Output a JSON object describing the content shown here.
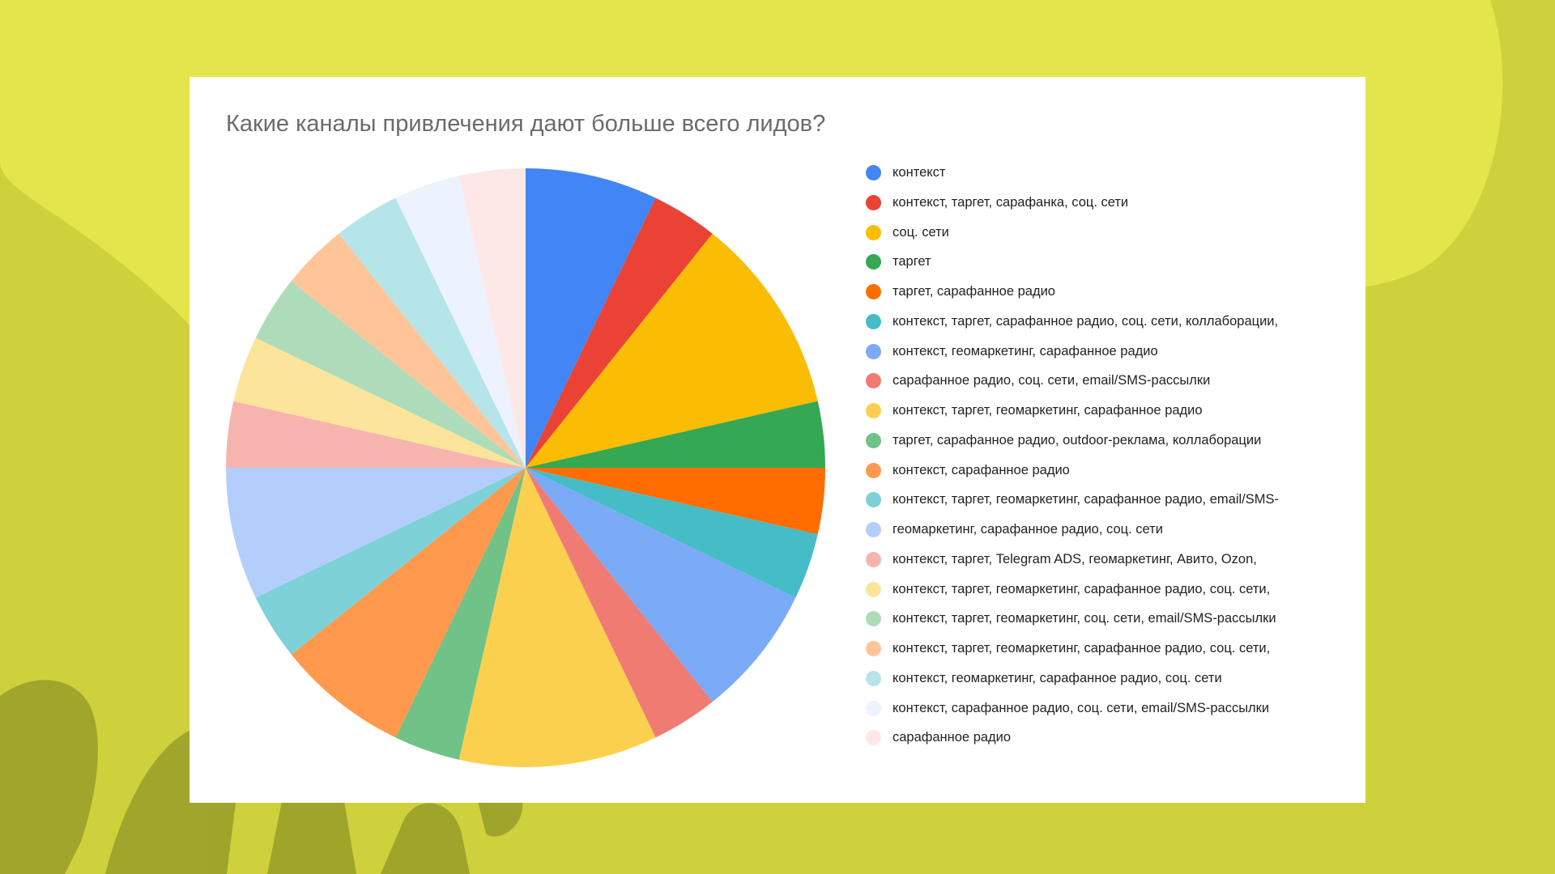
{
  "chart_data": {
    "type": "pie",
    "title": "Какие каналы привлечения дают больше всего лидов?",
    "legend_position": "right",
    "slices": [
      {
        "label": "контекст",
        "value": 7.4,
        "color": "#4285f4"
      },
      {
        "label": "контекст, таргет, сарафанка, соц. сети",
        "value": 3.7,
        "color": "#ea4335"
      },
      {
        "label": "соц. сети",
        "value": 11.1,
        "color": "#fbbc04"
      },
      {
        "label": "таргет",
        "value": 3.7,
        "color": "#34a853"
      },
      {
        "label": "таргет, сарафанное радио",
        "value": 3.7,
        "color": "#ff6d01"
      },
      {
        "label": "контекст, таргет, сарафанное радио, соц. сети, коллаборации,",
        "value": 3.7,
        "color": "#46bdc6"
      },
      {
        "label": "контекст, геомаркетинг, сарафанное радио",
        "value": 7.4,
        "color": "#7baaf7"
      },
      {
        "label": "сарафанное радио, соц. сети, email/SMS-рассылки",
        "value": 3.7,
        "color": "#f07b72"
      },
      {
        "label": "контекст, таргет, геомаркетинг, сарафанное радио",
        "value": 11.1,
        "color": "#fcd04f"
      },
      {
        "label": "таргет, сарафанное радио, outdoor-реклама, коллаборации",
        "value": 3.7,
        "color": "#71c287"
      },
      {
        "label": "контекст, сарафанное радио",
        "value": 7.4,
        "color": "#ff994d"
      },
      {
        "label": "контекст, таргет, геомаркетинг, сарафанное радио, email/SMS-",
        "value": 3.7,
        "color": "#7ed1d7"
      },
      {
        "label": "геомаркетинг, сарафанное радио, соц. сети",
        "value": 7.4,
        "color": "#b3cefb"
      },
      {
        "label": "контекст, таргет, Telegram ADS, геомаркетинг, Авито, Ozon,",
        "value": 3.7,
        "color": "#f7b4ae"
      },
      {
        "label": "контекст, таргет, геомаркетинг, сарафанное радио, соц. сети,",
        "value": 3.7,
        "color": "#fde49b"
      },
      {
        "label": "контекст, таргет, геомаркетинг, соц. сети, email/SMS-рассылки",
        "value": 3.7,
        "color": "#aedcba"
      },
      {
        "label": "контекст, таргет, геомаркетинг, сарафанное радио, соц. сети,",
        "value": 3.7,
        "color": "#ffc599"
      },
      {
        "label": "контекст, геомаркетинг, сарафанное радио, соц. сети",
        "value": 3.7,
        "color": "#b5e5e8"
      },
      {
        "label": "контекст, сарафанное радио, соц. сети, email/SMS-рассылки",
        "value": 3.7,
        "color": "#ecf2fe"
      },
      {
        "label": "сарафанное радио",
        "value": 3.7,
        "color": "#fde8e6"
      }
    ]
  },
  "colors": {
    "page_background": "#cfd13c",
    "background_shape": "#e3e54a",
    "card_background": "#ffffff",
    "watermark": "#9aa02a"
  }
}
